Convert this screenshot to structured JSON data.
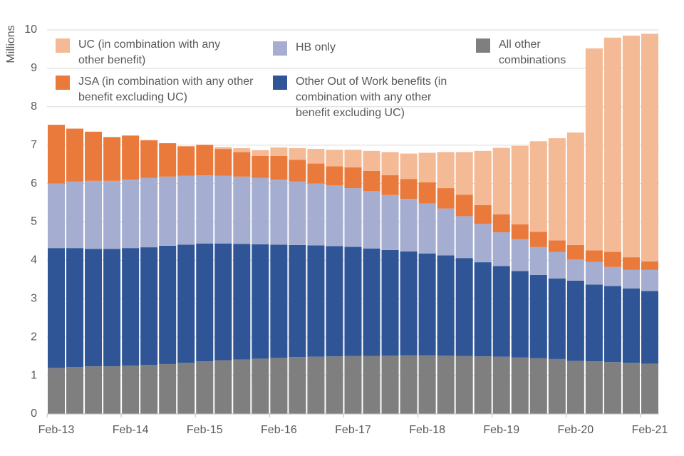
{
  "chart_data": {
    "type": "stacked_bar",
    "y_label": "Millions",
    "categories": [
      "Feb-13",
      null,
      null,
      null,
      "Feb-14",
      null,
      null,
      null,
      "Feb-15",
      null,
      null,
      null,
      "Feb-16",
      null,
      null,
      null,
      "Feb-17",
      null,
      null,
      null,
      "Feb-18",
      null,
      null,
      null,
      "Feb-19",
      null,
      null,
      null,
      "Feb-20",
      null,
      null,
      null,
      "Feb-21"
    ],
    "ylim": [
      0,
      10
    ],
    "yticks": [
      0,
      1,
      2,
      3,
      4,
      5,
      6,
      7,
      8,
      9,
      10
    ],
    "grid": true,
    "series": [
      {
        "name": "All other combinations",
        "color": "#7f7f7f",
        "values": [
          1.2,
          1.22,
          1.24,
          1.24,
          1.26,
          1.28,
          1.3,
          1.33,
          1.37,
          1.4,
          1.42,
          1.44,
          1.46,
          1.48,
          1.49,
          1.5,
          1.51,
          1.51,
          1.52,
          1.53,
          1.53,
          1.52,
          1.51,
          1.5,
          1.49,
          1.47,
          1.45,
          1.43,
          1.38,
          1.37,
          1.35,
          1.33,
          1.31
        ]
      },
      {
        "name": "Other Out of Work benefits (in combination with any other benefit excluding UC)",
        "color": "#2f5597",
        "values": [
          3.12,
          3.1,
          3.06,
          3.06,
          3.06,
          3.06,
          3.08,
          3.08,
          3.07,
          3.04,
          3.01,
          2.98,
          2.95,
          2.92,
          2.9,
          2.87,
          2.84,
          2.8,
          2.75,
          2.7,
          2.65,
          2.61,
          2.55,
          2.45,
          2.36,
          2.25,
          2.17,
          2.1,
          2.09,
          2.0,
          1.98,
          1.94,
          1.89
        ]
      },
      {
        "name": "HB only",
        "color": "#a5aed0",
        "values": [
          1.68,
          1.73,
          1.77,
          1.77,
          1.78,
          1.81,
          1.8,
          1.79,
          1.77,
          1.76,
          1.75,
          1.73,
          1.69,
          1.65,
          1.61,
          1.58,
          1.53,
          1.49,
          1.43,
          1.37,
          1.3,
          1.22,
          1.09,
          1.0,
          0.88,
          0.83,
          0.73,
          0.69,
          0.55,
          0.59,
          0.5,
          0.48,
          0.55
        ]
      },
      {
        "name": "JSA (in combination with any other benefit excluding UC)",
        "color": "#e97a3c",
        "values": [
          1.53,
          1.38,
          1.28,
          1.14,
          1.15,
          0.98,
          0.87,
          0.77,
          0.8,
          0.7,
          0.64,
          0.57,
          0.62,
          0.57,
          0.52,
          0.5,
          0.54,
          0.53,
          0.52,
          0.52,
          0.55,
          0.53,
          0.56,
          0.49,
          0.47,
          0.39,
          0.39,
          0.3,
          0.38,
          0.3,
          0.39,
          0.33,
          0.22
        ]
      },
      {
        "name": "UC (in combination with any other benefit)",
        "color": "#f4b995",
        "values": [
          0,
          0,
          0,
          0,
          0,
          0,
          0,
          0,
          0,
          0.05,
          0.1,
          0.15,
          0.22,
          0.3,
          0.38,
          0.43,
          0.46,
          0.52,
          0.6,
          0.66,
          0.77,
          0.94,
          1.11,
          1.41,
          1.73,
          2.04,
          2.36,
          2.66,
          2.93,
          5.26,
          5.58,
          5.77,
          5.93
        ]
      }
    ]
  }
}
